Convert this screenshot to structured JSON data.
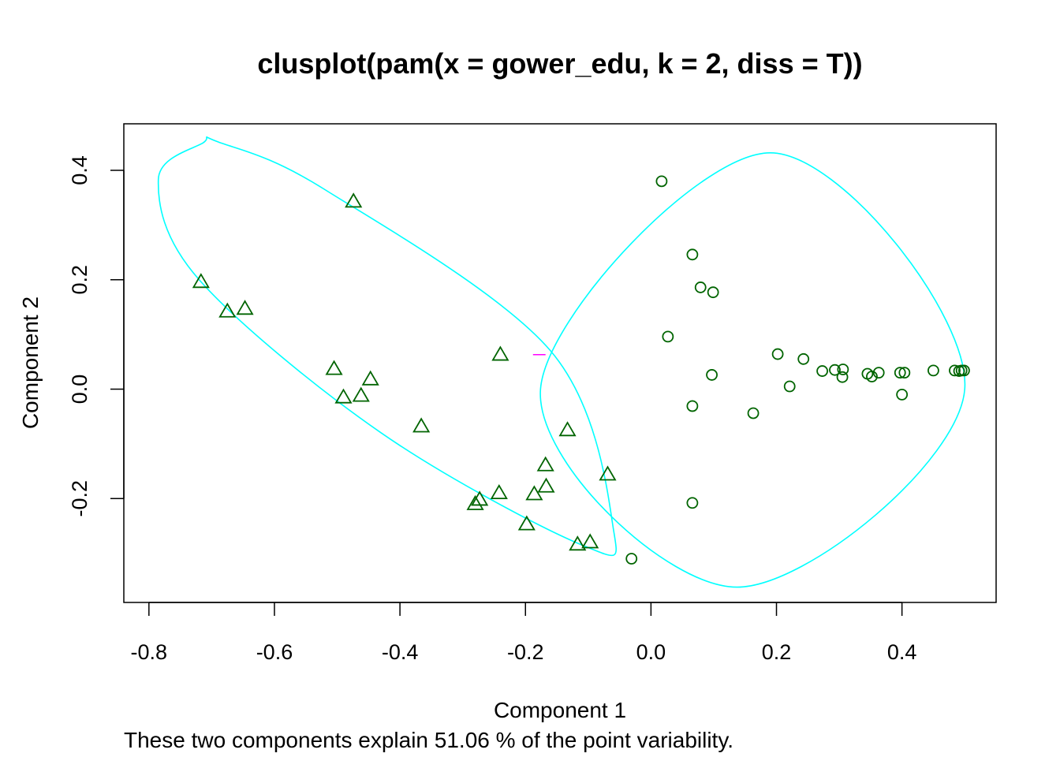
{
  "chart_data": {
    "type": "scatter",
    "title": "clusplot(pam(x = gower_edu, k = 2, diss = T))",
    "xlabel": "Component 1",
    "ylabel": "Component 2",
    "subtitle": "These two components explain 51.06 % of the point variability.",
    "xlim": [
      -0.84,
      0.55
    ],
    "ylim": [
      -0.39,
      0.485
    ],
    "x_ticks": [
      -0.8,
      -0.6,
      -0.4,
      -0.2,
      0.0,
      0.2,
      0.4
    ],
    "x_tick_labels": [
      "-0.8",
      "-0.6",
      "-0.4",
      "-0.2",
      "0.0",
      "0.2",
      "0.4"
    ],
    "y_ticks": [
      -0.2,
      0.0,
      0.2,
      0.4
    ],
    "y_tick_labels": [
      "-0.2",
      "0.0",
      "0.2",
      "0.4"
    ],
    "grid": false,
    "point_color": "#006400",
    "ellipse_color": "#00FFFF",
    "connector_color": "#FF00FF",
    "series": [
      {
        "marker": "triangle",
        "points": [
          [
            -0.717,
            0.196
          ],
          [
            -0.675,
            0.142
          ],
          [
            -0.647,
            0.147
          ],
          [
            -0.474,
            0.343
          ],
          [
            -0.505,
            0.037
          ],
          [
            -0.49,
            -0.015
          ],
          [
            -0.462,
            -0.012
          ],
          [
            -0.447,
            0.018
          ],
          [
            -0.366,
            -0.068
          ],
          [
            -0.24,
            0.063
          ],
          [
            -0.28,
            -0.21
          ],
          [
            -0.273,
            -0.202
          ],
          [
            -0.242,
            -0.19
          ],
          [
            -0.186,
            -0.192
          ],
          [
            -0.198,
            -0.247
          ],
          [
            -0.168,
            -0.139
          ],
          [
            -0.167,
            -0.178
          ],
          [
            -0.133,
            -0.075
          ],
          [
            -0.069,
            -0.156
          ],
          [
            -0.117,
            -0.284
          ],
          [
            -0.097,
            -0.28
          ]
        ]
      },
      {
        "marker": "circle",
        "points": [
          [
            0.017,
            0.38
          ],
          [
            0.066,
            0.246
          ],
          [
            0.079,
            0.186
          ],
          [
            0.099,
            0.177
          ],
          [
            0.027,
            0.096
          ],
          [
            0.097,
            0.026
          ],
          [
            0.066,
            -0.031
          ],
          [
            0.163,
            -0.044
          ],
          [
            0.202,
            0.064
          ],
          [
            0.243,
            0.055
          ],
          [
            0.221,
            0.005
          ],
          [
            0.273,
            0.033
          ],
          [
            0.293,
            0.035
          ],
          [
            0.306,
            0.036
          ],
          [
            0.305,
            0.022
          ],
          [
            0.345,
            0.028
          ],
          [
            0.352,
            0.023
          ],
          [
            0.363,
            0.03
          ],
          [
            0.397,
            0.03
          ],
          [
            0.404,
            0.03
          ],
          [
            0.4,
            -0.01
          ],
          [
            0.45,
            0.034
          ],
          [
            0.484,
            0.034
          ],
          [
            0.491,
            0.033
          ],
          [
            0.495,
            0.034
          ],
          [
            0.499,
            0.034
          ],
          [
            0.066,
            -0.208
          ],
          [
            -0.031,
            -0.31
          ]
        ]
      }
    ],
    "ellipses": [
      {
        "points": [
          [
            -0.714,
            0.45
          ],
          [
            -0.785,
            0.383
          ],
          [
            -0.72,
            0.2
          ],
          [
            -0.43,
            -0.08
          ],
          [
            -0.11,
            -0.285
          ],
          [
            -0.06,
            -0.255
          ],
          [
            -0.16,
            0.07
          ],
          [
            -0.52,
            0.365
          ],
          [
            -0.69,
            0.452
          ]
        ]
      },
      {
        "points": [
          [
            0.19,
            0.432
          ],
          [
            0.5,
            0.0
          ],
          [
            0.137,
            -0.362
          ],
          [
            -0.176,
            0.0
          ]
        ]
      }
    ],
    "connector": [
      [
        -0.188,
        0.063
      ],
      [
        -0.168,
        0.063
      ]
    ]
  }
}
